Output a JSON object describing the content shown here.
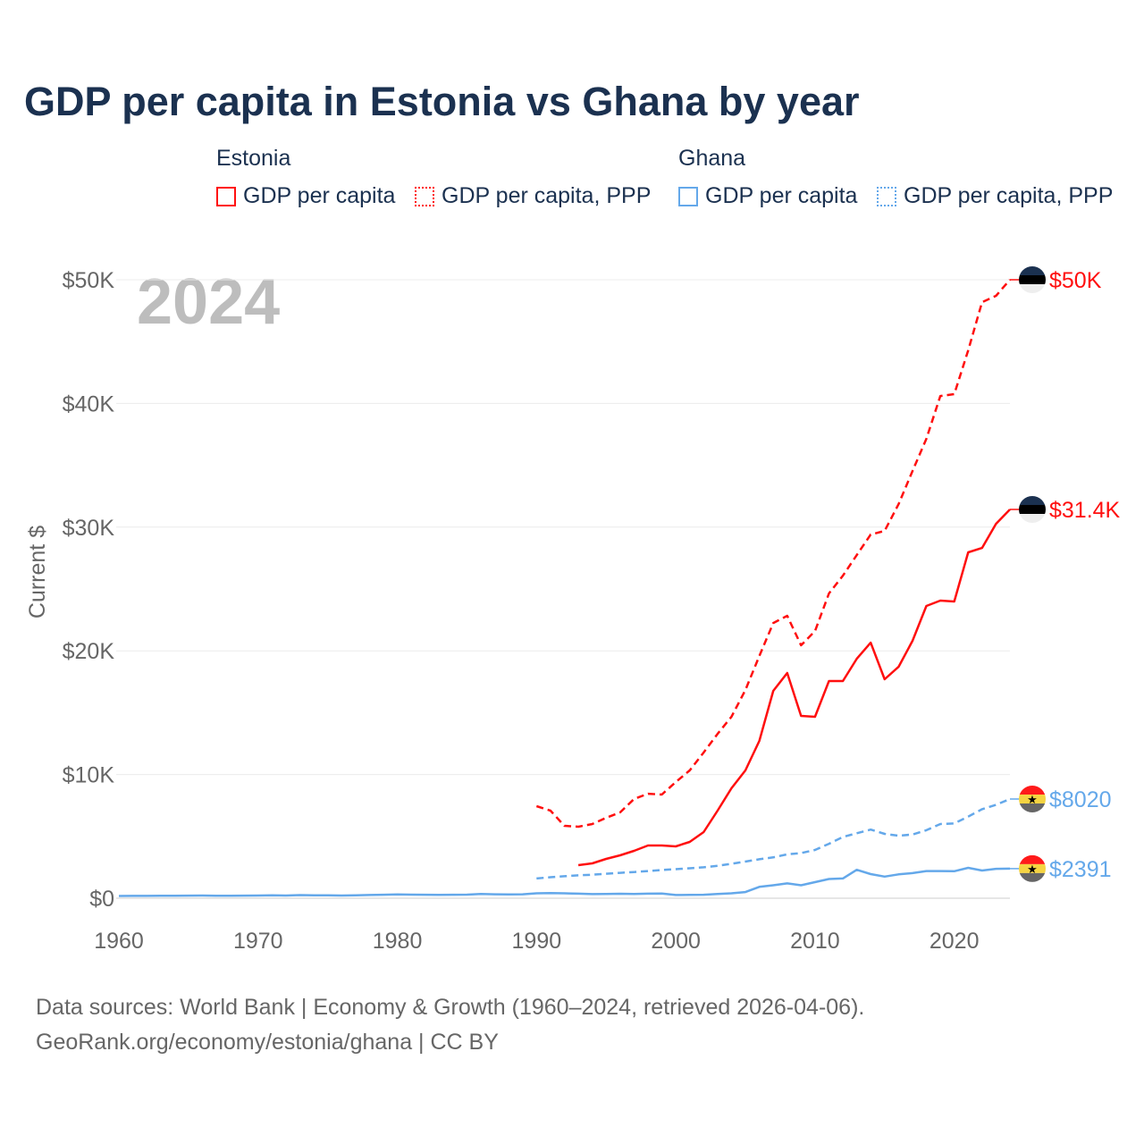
{
  "title": "GDP per capita in Estonia vs Ghana by year",
  "legend": {
    "groups": [
      {
        "label": "Estonia",
        "items": [
          "GDP per capita",
          "GDP per capita, PPP"
        ]
      },
      {
        "label": "Ghana",
        "items": [
          "GDP per capita",
          "GDP per capita, PPP"
        ]
      }
    ]
  },
  "year_watermark": "2024",
  "source": {
    "line1": "Data sources: World Bank | Economy & Growth (1960–2024, retrieved 2026-04-06).",
    "line2": "GeoRank.org/economy/estonia/ghana | CC BY"
  },
  "colors": {
    "estonia": "#ff0f0f",
    "ghana": "#64a8ea",
    "title": "#1b3150"
  },
  "chart_data": {
    "type": "line",
    "title": "GDP per capita in Estonia vs Ghana by year",
    "xlabel": "",
    "ylabel": "Current $",
    "xlim": [
      1960,
      2024
    ],
    "ylim": [
      0,
      50000
    ],
    "xticks": [
      1960,
      1970,
      1980,
      1990,
      2000,
      2010,
      2020
    ],
    "xtick_labels": [
      "1960",
      "1970",
      "1980",
      "1990",
      "2000",
      "2010",
      "2020"
    ],
    "yticks": [
      0,
      10000,
      20000,
      30000,
      40000,
      50000
    ],
    "ytick_labels": [
      "$0",
      "$10K",
      "$20K",
      "$30K",
      "$40K",
      "$50K"
    ],
    "grid": true,
    "legend_position": "top",
    "series": [
      {
        "name": "Estonia GDP per capita, PPP",
        "country": "Estonia",
        "style": "dashed",
        "color": "#ff0f0f",
        "end_label": "$50K",
        "flag": "estonia",
        "x_start": 1990,
        "values": [
          7440,
          7080,
          5850,
          5780,
          6000,
          6500,
          6940,
          8020,
          8450,
          8380,
          9390,
          10330,
          11780,
          13290,
          14670,
          16830,
          19580,
          22250,
          22830,
          20450,
          21600,
          24640,
          26080,
          27740,
          29400,
          29700,
          31860,
          34540,
          37140,
          40600,
          40750,
          44290,
          48190,
          48700,
          50000
        ]
      },
      {
        "name": "Estonia GDP per capita",
        "country": "Estonia",
        "style": "solid",
        "color": "#ff0f0f",
        "end_label": "$31.4K",
        "flag": "estonia",
        "x_start": 1993,
        "values": [
          2670,
          2820,
          3180,
          3470,
          3830,
          4260,
          4260,
          4190,
          4550,
          5350,
          7080,
          8890,
          10330,
          12720,
          16760,
          18210,
          14740,
          14670,
          17560,
          17560,
          19360,
          20660,
          17700,
          18710,
          20810,
          23630,
          24060,
          23990,
          27960,
          28320,
          30270,
          31430
        ]
      },
      {
        "name": "Ghana GDP per capita, PPP",
        "country": "Ghana",
        "style": "dashed",
        "color": "#64a8ea",
        "end_label": "$8020",
        "flag": "ghana",
        "x_start": 1990,
        "values": [
          1600,
          1700,
          1780,
          1850,
          1900,
          1980,
          2050,
          2120,
          2200,
          2280,
          2350,
          2420,
          2500,
          2620,
          2780,
          2960,
          3150,
          3300,
          3550,
          3650,
          3900,
          4400,
          4950,
          5250,
          5550,
          5200,
          5050,
          5150,
          5500,
          6000,
          6050,
          6600,
          7200,
          7550,
          8020
        ]
      },
      {
        "name": "Ghana GDP per capita",
        "country": "Ghana",
        "style": "solid",
        "color": "#64a8ea",
        "end_label": "$2391",
        "flag": "ghana",
        "x_start": 1960,
        "values": [
          180,
          185,
          190,
          195,
          200,
          210,
          215,
          200,
          195,
          210,
          220,
          230,
          215,
          250,
          240,
          230,
          220,
          240,
          260,
          280,
          300,
          290,
          280,
          270,
          280,
          290,
          350,
          320,
          310,
          320,
          400,
          410,
          400,
          370,
          330,
          350,
          360,
          350,
          370,
          380,
          260,
          270,
          280,
          350,
          400,
          500,
          920,
          1050,
          1200,
          1050,
          1300,
          1550,
          1600,
          2300,
          1950,
          1750,
          1930,
          2030,
          2200,
          2200,
          2180,
          2460,
          2240,
          2380,
          2391
        ]
      }
    ]
  }
}
